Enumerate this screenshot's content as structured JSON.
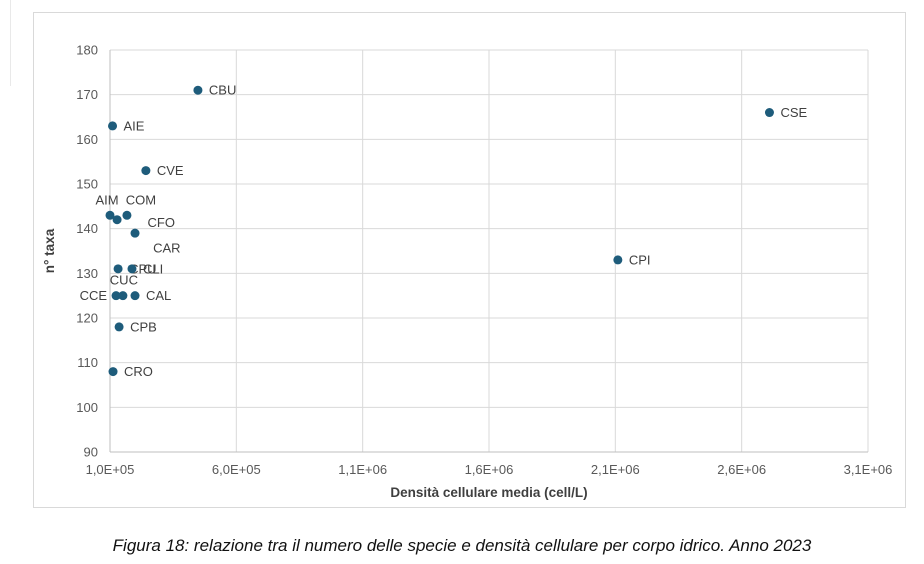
{
  "caption": "Figura 18: relazione tra il numero delle specie e densità cellulare per corpo idrico. Anno 2023",
  "chart_data": {
    "type": "scatter",
    "title": "",
    "xlabel": "Densità cellulare media (cell/L)",
    "ylabel": "n° taxa",
    "xlim": [
      100000,
      3100000
    ],
    "ylim": [
      90,
      180
    ],
    "grid": true,
    "legend": false,
    "x_ticks": [
      {
        "value": 100000,
        "label": "1,0E+05"
      },
      {
        "value": 600000,
        "label": "6,0E+05"
      },
      {
        "value": 1100000,
        "label": "1,1E+06"
      },
      {
        "value": 1600000,
        "label": "1,6E+06"
      },
      {
        "value": 2100000,
        "label": "2,1E+06"
      },
      {
        "value": 2600000,
        "label": "2,6E+06"
      },
      {
        "value": 3100000,
        "label": "3,1E+06"
      }
    ],
    "y_ticks": [
      90,
      100,
      110,
      120,
      130,
      140,
      150,
      160,
      170,
      180
    ],
    "points": [
      {
        "label": "AIE",
        "x": 110000,
        "y": 163,
        "label_pos": "right"
      },
      {
        "label": "CBU",
        "x": 448000,
        "y": 171,
        "label_pos": "right"
      },
      {
        "label": "CSE",
        "x": 2710000,
        "y": 166,
        "label_pos": "right"
      },
      {
        "label": "CVE",
        "x": 242000,
        "y": 153,
        "label_pos": "right"
      },
      {
        "label": "AIM",
        "x": 100000,
        "y": 143,
        "label_pos": "above-left"
      },
      {
        "label": "COM",
        "x": 167000,
        "y": 143,
        "label_pos": "above-right"
      },
      {
        "label": "CAR",
        "x": 128000,
        "y": 142,
        "label_pos": "detached"
      },
      {
        "label": "CFO",
        "x": 199000,
        "y": 139,
        "label_pos": "right-up"
      },
      {
        "label": "CPU",
        "x": 132000,
        "y": 131,
        "label_pos": "right"
      },
      {
        "label": "CLI",
        "x": 187000,
        "y": 131,
        "label_pos": "right"
      },
      {
        "label": "CCE",
        "x": 124000,
        "y": 125,
        "label_pos": "left"
      },
      {
        "label": "CUC",
        "x": 151000,
        "y": 125,
        "label_pos": "above"
      },
      {
        "label": "CAL",
        "x": 199000,
        "y": 125,
        "label_pos": "right"
      },
      {
        "label": "CPB",
        "x": 136000,
        "y": 118,
        "label_pos": "right"
      },
      {
        "label": "CRO",
        "x": 112000,
        "y": 108,
        "label_pos": "right"
      },
      {
        "label": "CPI",
        "x": 2110000,
        "y": 133,
        "label_pos": "right"
      }
    ],
    "colors": {
      "point": "#1e5c7b",
      "grid": "#d9d9d9",
      "axis": "#bfbfbf",
      "border": "#d9d9d9",
      "tick_text": "#595959",
      "data_label_text": "#404040",
      "axis_title_text": "#3f3f3f"
    }
  }
}
